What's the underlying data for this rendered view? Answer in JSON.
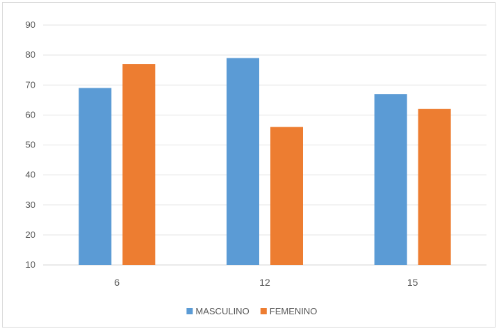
{
  "chart_data": {
    "type": "bar",
    "categories": [
      "6",
      "12",
      "15"
    ],
    "series": [
      {
        "name": "MASCULINO",
        "values": [
          69,
          79,
          67
        ],
        "color": "#5b9bd5"
      },
      {
        "name": "FEMENINO",
        "values": [
          77,
          56,
          62
        ],
        "color": "#ed7d31"
      }
    ],
    "ylim": [
      10,
      90
    ],
    "yticks": [
      10,
      20,
      30,
      40,
      50,
      60,
      70,
      80,
      90
    ],
    "grid": true,
    "legend_position": "bottom"
  }
}
